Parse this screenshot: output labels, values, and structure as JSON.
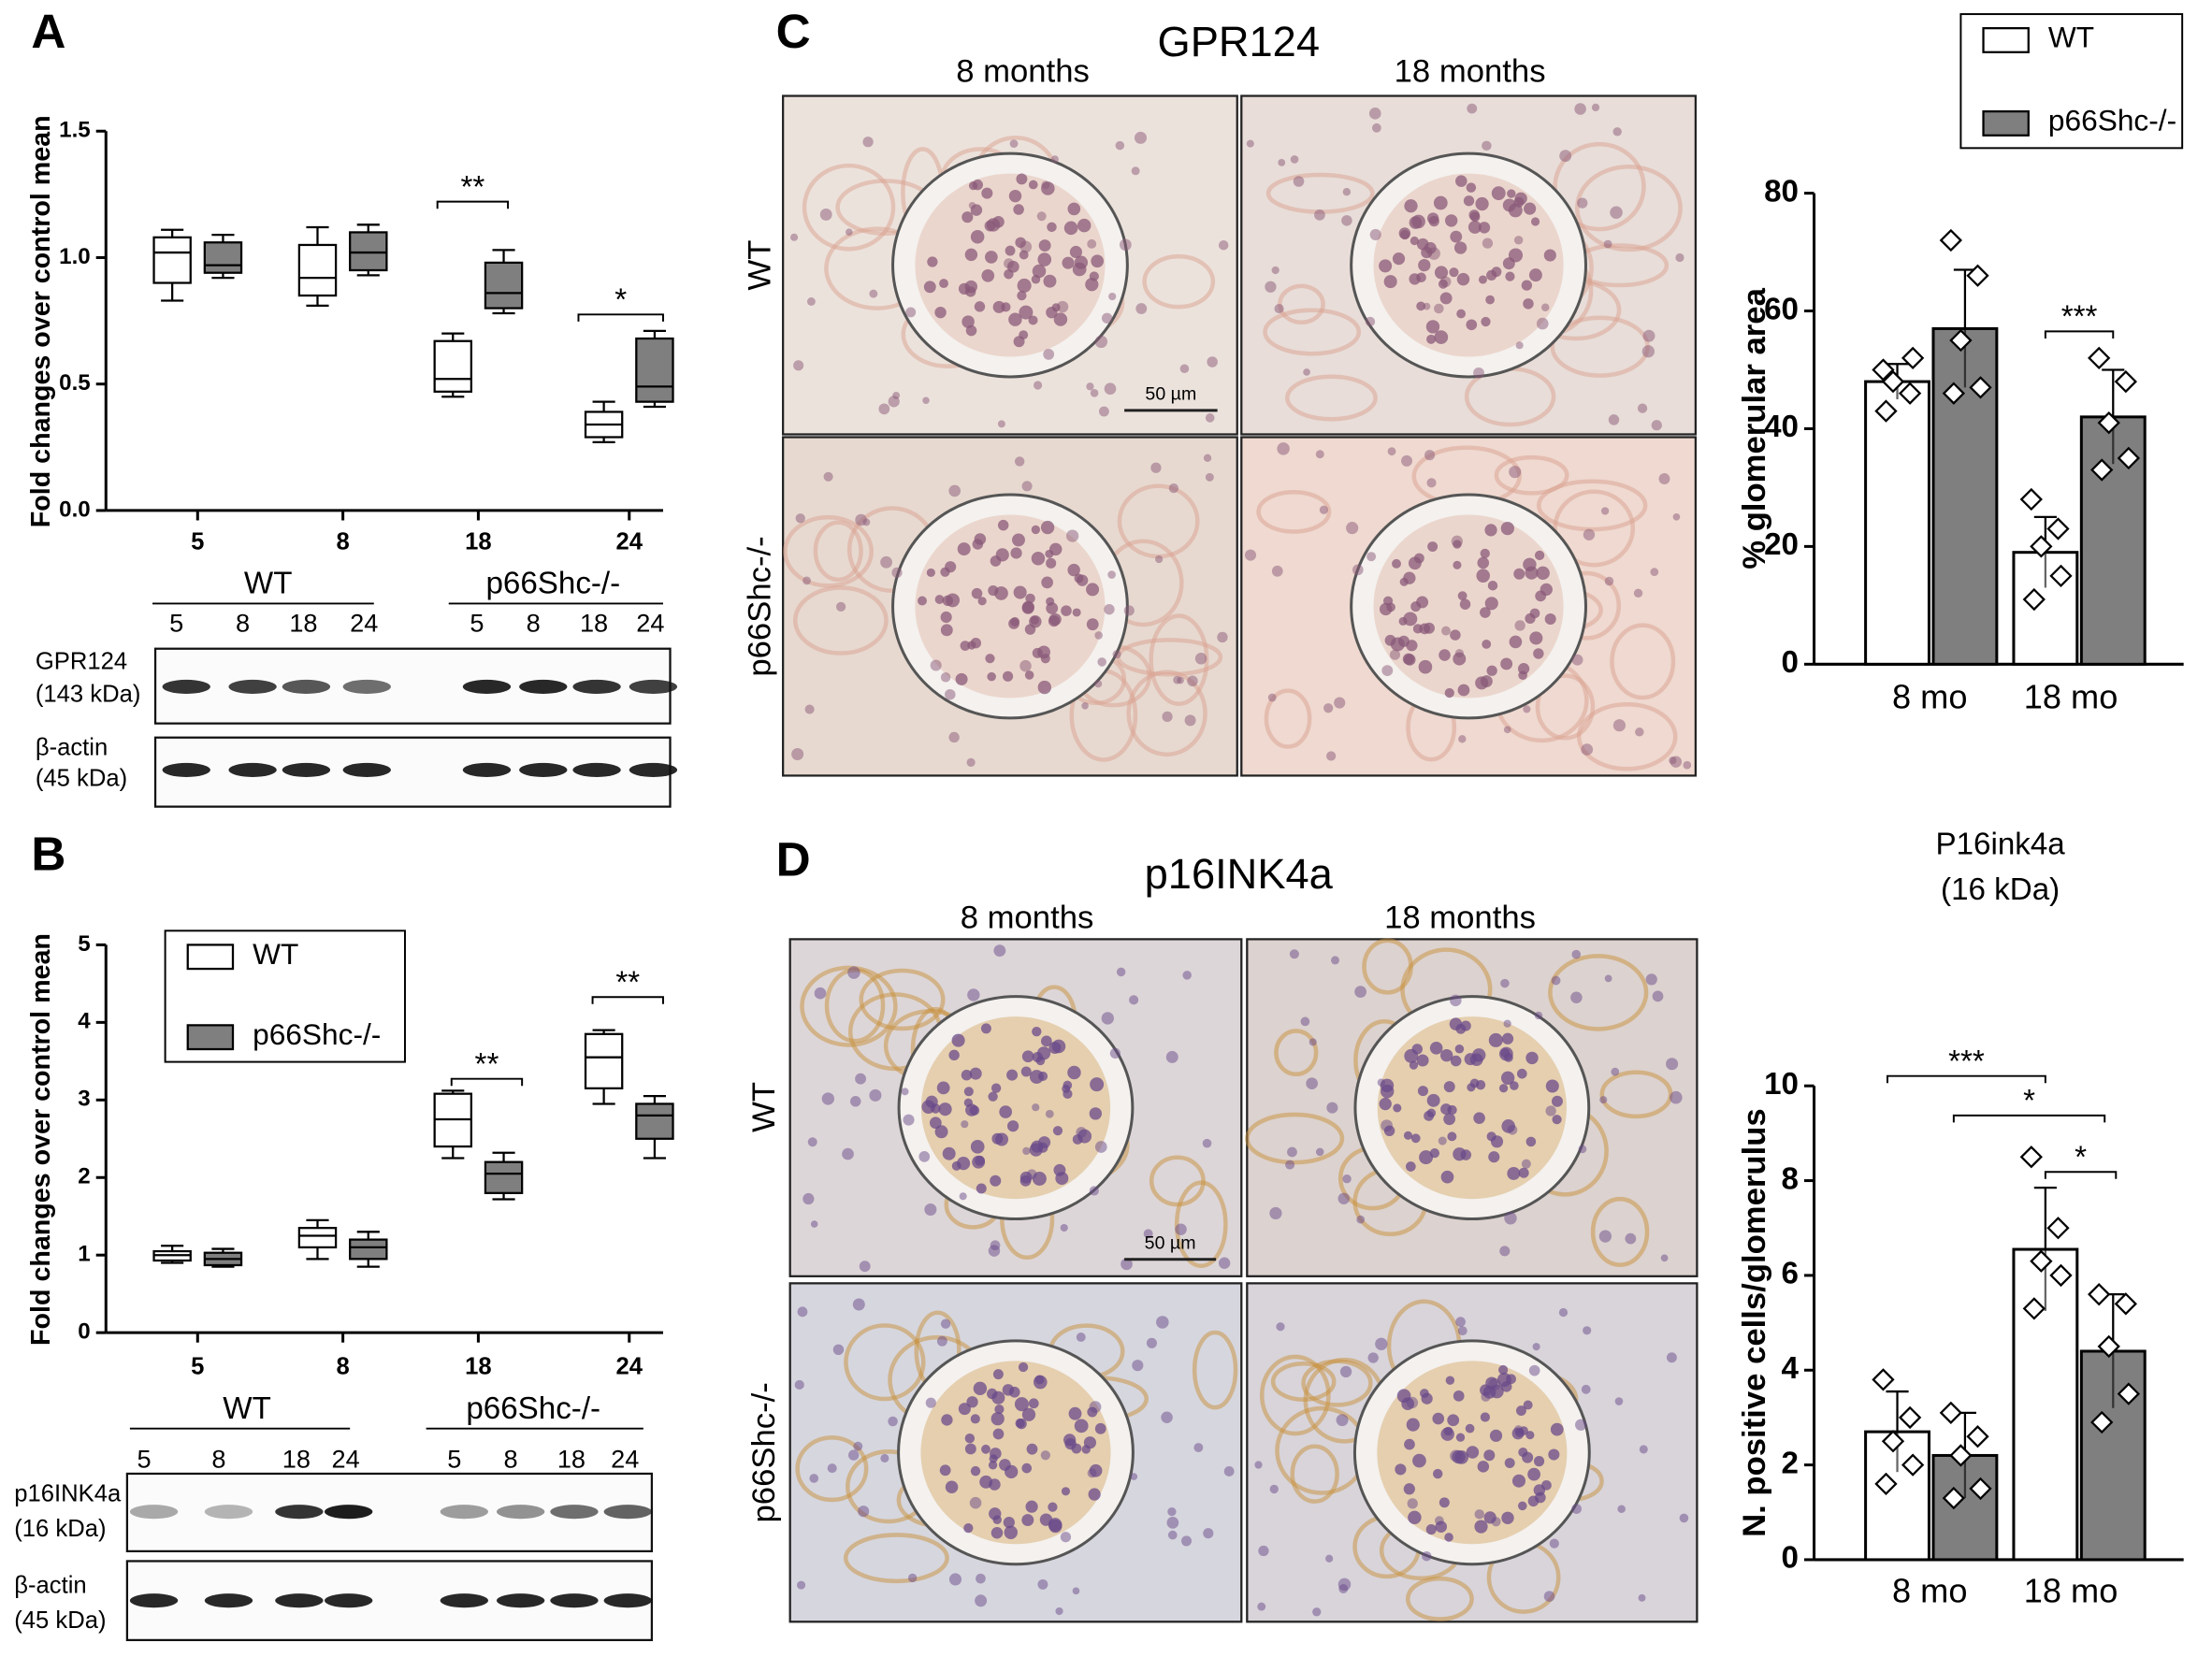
{
  "panel_labels": [
    "A",
    "B",
    "C",
    "D"
  ],
  "chart_data": [
    {
      "type": "box",
      "y_label": "Fold changes over control mean",
      "categories": [
        "5",
        "8",
        "18",
        "24"
      ],
      "series": [
        {
          "color": "#ffffff",
          "values": [
            {
              "min": 0.83,
              "q1": 0.9,
              "median": 1.02,
              "q3": 1.08,
              "max": 1.11
            },
            {
              "min": 0.81,
              "q1": 0.85,
              "median": 0.92,
              "q3": 1.05,
              "max": 1.12
            },
            {
              "min": 0.45,
              "q1": 0.47,
              "median": 0.52,
              "q3": 0.67,
              "max": 0.7
            },
            {
              "min": 0.27,
              "q1": 0.29,
              "median": 0.34,
              "q3": 0.39,
              "max": 0.43
            }
          ]
        },
        {
          "color": "#7f7f7f",
          "values": [
            {
              "min": 0.92,
              "q1": 0.94,
              "median": 0.97,
              "q3": 1.06,
              "max": 1.09
            },
            {
              "min": 0.93,
              "q1": 0.95,
              "median": 1.02,
              "q3": 1.1,
              "max": 1.13
            },
            {
              "min": 0.78,
              "q1": 0.8,
              "median": 0.86,
              "q3": 0.98,
              "max": 1.03
            },
            {
              "min": 0.41,
              "q1": 0.43,
              "median": 0.49,
              "q3": 0.68,
              "max": 0.71
            }
          ]
        }
      ],
      "ylim": [
        0,
        1.5
      ],
      "yticks": [
        {
          "value": 0,
          "label": "0.0"
        },
        {
          "value": 0.5,
          "label": "0.5"
        },
        {
          "value": 1,
          "label": "1.0"
        },
        {
          "value": 1.5,
          "label": "1.5"
        }
      ],
      "annotations": [
        "**",
        "*"
      ]
    },
    {
      "type": "box",
      "y_label": "Fold changes over control mean",
      "categories": [
        "5",
        "8",
        "18",
        "24"
      ],
      "series": [
        {
          "name": "WT",
          "color": "#ffffff",
          "values": [
            {
              "min": 0.9,
              "q1": 0.93,
              "median": 1.0,
              "q3": 1.05,
              "max": 1.12
            },
            {
              "min": 0.95,
              "q1": 1.1,
              "median": 1.25,
              "q3": 1.35,
              "max": 1.45
            },
            {
              "min": 2.25,
              "q1": 2.4,
              "median": 2.75,
              "q3": 3.08,
              "max": 3.12
            },
            {
              "min": 2.95,
              "q1": 3.15,
              "median": 3.55,
              "q3": 3.85,
              "max": 3.9
            }
          ]
        },
        {
          "name": "p66Shc-/-",
          "color": "#7f7f7f",
          "values": [
            {
              "min": 0.85,
              "q1": 0.87,
              "median": 0.95,
              "q3": 1.03,
              "max": 1.08
            },
            {
              "min": 0.85,
              "q1": 0.95,
              "median": 1.1,
              "q3": 1.2,
              "max": 1.3
            },
            {
              "min": 1.72,
              "q1": 1.8,
              "median": 2.05,
              "q3": 2.2,
              "max": 2.32
            },
            {
              "min": 2.25,
              "q1": 2.5,
              "median": 2.8,
              "q3": 2.95,
              "max": 3.05
            }
          ]
        }
      ],
      "ylim": [
        0,
        5
      ],
      "yticks": [
        0,
        1,
        2,
        3,
        4,
        5
      ],
      "legend": "upper left",
      "annotations": [
        "**",
        "**"
      ]
    },
    {
      "type": "bar",
      "y_label": "% glomerular area",
      "categories": [
        "8 mo",
        "18 mo"
      ],
      "series": [
        {
          "name": "WT",
          "color": "#ffffff",
          "values": [
            48,
            19
          ],
          "errors": [
            3,
            6
          ],
          "points": [
            [
              50,
              46,
              48,
              52,
              43
            ],
            [
              28,
              23,
              20,
              15,
              11
            ]
          ]
        },
        {
          "name": "p66Shc-/-",
          "color": "#7f7f7f",
          "values": [
            57,
            42
          ],
          "errors": [
            10,
            8
          ],
          "points": [
            [
              72,
              66,
              55,
              47,
              46
            ],
            [
              52,
              48,
              41,
              35,
              33
            ]
          ]
        }
      ],
      "ylim": [
        0,
        80
      ],
      "yticks": [
        0,
        20,
        40,
        60,
        80
      ],
      "legend": "upper right",
      "annotations": [
        "***"
      ]
    },
    {
      "type": "bar",
      "title": "P16ink4a",
      "subtitle": "(16 kDa)",
      "y_label": "N. positive cells/glomerulus",
      "categories": [
        "8 mo",
        "18 mo"
      ],
      "series": [
        {
          "color": "#ffffff",
          "values": [
            2.7,
            6.55
          ],
          "errors": [
            0.85,
            1.3
          ],
          "points": [
            [
              3.8,
              3.0,
              2.5,
              2.0,
              1.6
            ],
            [
              8.5,
              7.0,
              6.3,
              6.0,
              5.3
            ]
          ]
        },
        {
          "color": "#7f7f7f",
          "values": [
            2.2,
            4.4
          ],
          "errors": [
            0.9,
            1.2
          ],
          "points": [
            [
              3.1,
              2.6,
              2.2,
              1.5,
              1.3
            ],
            [
              5.6,
              5.4,
              4.5,
              3.5,
              2.9
            ]
          ]
        }
      ],
      "ylim": [
        0,
        10
      ],
      "yticks": [
        0,
        2,
        4,
        6,
        8,
        10
      ],
      "annotations": [
        "***",
        "*",
        "*"
      ]
    }
  ],
  "blots": [
    {
      "groups": [
        "WT",
        "p66Shc-/-"
      ],
      "lanes": [
        [
          "5",
          "8",
          "18",
          "24"
        ],
        [
          "5",
          "8",
          "18",
          "24"
        ]
      ],
      "rows": [
        [
          "GPR124",
          "(143 kDa)"
        ],
        [
          "β-actin",
          "(45 kDa)"
        ]
      ]
    },
    {
      "groups": [
        "WT",
        "p66Shc-/-"
      ],
      "lanes": [
        [
          "5",
          "8",
          "18",
          "24"
        ],
        [
          "5",
          "8",
          "18",
          "24"
        ]
      ],
      "rows": [
        [
          "p16INK4a",
          "(16 kDa)"
        ],
        [
          "β-actin",
          "(45 kDa)"
        ]
      ]
    }
  ],
  "micrographs": [
    {
      "title": "GPR124",
      "columns": [
        "8 months",
        "18 months"
      ],
      "rows": [
        "WT",
        "p66Shc-/-"
      ],
      "scale_bar": "50 µm"
    },
    {
      "title": "p16INK4a",
      "columns": [
        "8 months",
        "18 months"
      ],
      "rows": [
        "WT",
        "p66Shc-/-"
      ],
      "scale_bar": "50 µm"
    }
  ]
}
